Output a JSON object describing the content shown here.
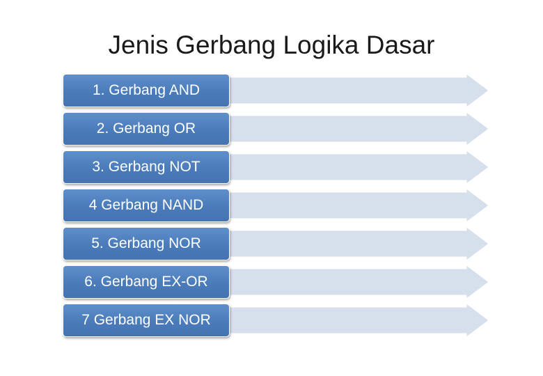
{
  "title": "Jenis Gerbang Logika Dasar",
  "items": [
    {
      "label": "1. Gerbang AND"
    },
    {
      "label": "2. Gerbang OR"
    },
    {
      "label": "3. Gerbang NOT"
    },
    {
      "label": "4 Gerbang NAND"
    },
    {
      "label": "5. Gerbang NOR"
    },
    {
      "label": "6. Gerbang EX-OR"
    },
    {
      "label": "7 Gerbang EX NOR"
    }
  ],
  "colors": {
    "box": "#4f81bd",
    "arrow": "#d6dfec",
    "title": "#1a1a1a"
  }
}
